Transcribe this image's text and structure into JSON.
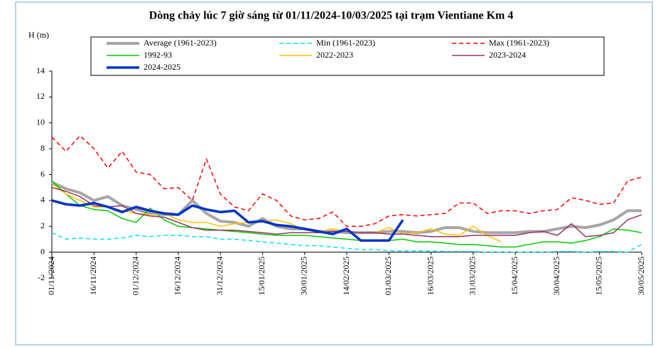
{
  "chart_data": {
    "type": "line",
    "title": "Dòng chảy lúc 7 giờ sáng từ 01/11/2024-10/03/2025 tại trạm Vientiane Km 4",
    "y_label": "H (m)",
    "x": [
      "01/11/2024",
      "06/11/2024",
      "11/11/2024",
      "16/11/2024",
      "21/11/2024",
      "26/11/2024",
      "01/12/2024",
      "06/12/2024",
      "11/12/2024",
      "16/12/2024",
      "21/12/2024",
      "26/12/2024",
      "31/12/2024",
      "05/01/2025",
      "10/01/2025",
      "15/01/2025",
      "20/01/2025",
      "25/01/2025",
      "30/01/2025",
      "04/02/2025",
      "09/02/2025",
      "14/02/2025",
      "19/02/2025",
      "24/02/2025",
      "01/03/2025",
      "06/03/2025",
      "11/03/2025",
      "16/03/2025",
      "21/03/2025",
      "26/03/2025",
      "31/03/2025",
      "05/04/2025",
      "10/04/2025",
      "15/04/2025",
      "20/04/2025",
      "25/04/2025",
      "30/04/2025",
      "05/05/2025",
      "10/05/2025",
      "15/05/2025",
      "20/05/2025",
      "25/05/2025",
      "30/05/2025"
    ],
    "xlim": [
      "01/11/2024",
      "30/05/2025"
    ],
    "xticks": [
      "01/11/2024",
      "16/11/2024",
      "01/12/2024",
      "16/12/2024",
      "31/12/2024",
      "15/01/2025",
      "30/01/2025",
      "14/02/2025",
      "01/03/2025",
      "16/03/2025",
      "31/03/2025",
      "15/04/2025",
      "30/04/2025",
      "15/05/2025",
      "30/05/2025"
    ],
    "ylim": [
      -2,
      14
    ],
    "yticks": [
      -2,
      0,
      2,
      4,
      6,
      8,
      10,
      12,
      14
    ],
    "series": [
      {
        "name": "Average (1961-2023)",
        "color": "#a6a6a6",
        "width": 4,
        "dash": false,
        "values": [
          5.4,
          4.9,
          4.6,
          4.0,
          4.3,
          3.6,
          3.3,
          3.0,
          2.9,
          2.9,
          4.0,
          3.0,
          2.4,
          2.3,
          2.0,
          2.6,
          2.0,
          1.8,
          1.8,
          1.6,
          1.6,
          1.5,
          1.5,
          1.5,
          1.6,
          1.6,
          1.5,
          1.6,
          1.9,
          1.9,
          1.6,
          1.5,
          1.5,
          1.5,
          1.6,
          1.6,
          1.8,
          2.0,
          1.9,
          2.1,
          2.5,
          3.2,
          3.2
        ]
      },
      {
        "name": "Min (1961-2023)",
        "color": "#00e5ee",
        "width": 1.5,
        "dash": true,
        "values": [
          1.5,
          1.0,
          1.1,
          1.0,
          1.0,
          1.1,
          1.3,
          1.2,
          1.3,
          1.3,
          1.2,
          1.2,
          1.0,
          1.0,
          0.9,
          0.8,
          0.7,
          0.6,
          0.5,
          0.5,
          0.4,
          0.3,
          0.2,
          0.2,
          0.1,
          0.1,
          0.1,
          0.1,
          0.05,
          0.05,
          0.05,
          0,
          0,
          0,
          0,
          0,
          0.05,
          0.05,
          0,
          0.05,
          0.05,
          0,
          0.6
        ]
      },
      {
        "name": "Max (1961-2023)",
        "color": "#ff0000",
        "width": 1.5,
        "dash": true,
        "values": [
          8.9,
          7.8,
          9.0,
          8.0,
          6.5,
          7.8,
          6.2,
          6.0,
          4.9,
          5.0,
          4.0,
          7.2,
          4.5,
          3.5,
          3.2,
          4.5,
          4.0,
          2.8,
          2.5,
          2.6,
          3.1,
          2.0,
          2.0,
          2.2,
          2.8,
          2.9,
          2.8,
          2.9,
          3.0,
          3.8,
          3.8,
          3.0,
          3.2,
          3.2,
          3.0,
          3.2,
          3.3,
          4.2,
          4.0,
          3.7,
          3.8,
          5.5,
          5.8
        ]
      },
      {
        "name": "1992-93",
        "color": "#00cc00",
        "width": 1.5,
        "dash": false,
        "values": [
          5.5,
          4.5,
          3.6,
          3.3,
          3.2,
          2.6,
          2.3,
          3.4,
          2.5,
          2.0,
          1.9,
          1.8,
          1.7,
          1.6,
          1.5,
          1.4,
          1.3,
          1.3,
          1.3,
          1.2,
          1.1,
          1.0,
          0.9,
          0.9,
          0.9,
          1.0,
          0.8,
          0.8,
          0.7,
          0.6,
          0.6,
          0.5,
          0.4,
          0.4,
          0.6,
          0.8,
          0.8,
          0.7,
          0.9,
          1.2,
          1.8,
          1.7,
          1.5
        ]
      },
      {
        "name": "2022-2023",
        "color": "#ffc000",
        "width": 1.5,
        "dash": false,
        "values": [
          5.3,
          4.5,
          4.0,
          3.5,
          3.5,
          3.2,
          3.0,
          2.9,
          3.0,
          2.5,
          2.3,
          2.3,
          2.0,
          2.2,
          2.3,
          2.4,
          2.5,
          2.2,
          1.7,
          1.6,
          1.8,
          1.6,
          1.5,
          1.5,
          1.9,
          1.4,
          1.5,
          1.8,
          1.4,
          1.3,
          2.0,
          1.3,
          0.8,
          null,
          null,
          null,
          null,
          null,
          null,
          null,
          null,
          null,
          null
        ]
      },
      {
        "name": "2023-2024",
        "color": "#993366",
        "width": 1.5,
        "dash": false,
        "values": [
          5.0,
          4.7,
          4.3,
          3.6,
          3.5,
          3.6,
          3.0,
          2.8,
          2.7,
          2.3,
          1.9,
          1.7,
          1.7,
          1.7,
          1.6,
          1.5,
          1.4,
          1.5,
          1.5,
          1.5,
          1.6,
          1.6,
          1.5,
          1.5,
          1.4,
          1.4,
          1.3,
          1.2,
          1.2,
          1.2,
          1.3,
          1.3,
          1.3,
          1.3,
          1.5,
          1.6,
          1.3,
          2.2,
          1.2,
          1.3,
          1.5,
          2.5,
          2.9
        ]
      },
      {
        "name": "2024-2025",
        "color": "#0033cc",
        "width": 3.5,
        "dash": false,
        "values": [
          4.0,
          3.7,
          3.6,
          3.8,
          3.5,
          3.1,
          3.5,
          3.2,
          3.0,
          2.9,
          3.6,
          3.3,
          3.1,
          3.2,
          2.3,
          2.4,
          2.1,
          2.0,
          1.8,
          1.6,
          1.4,
          1.8,
          0.9,
          0.9,
          0.9,
          2.5,
          null,
          null,
          null,
          null,
          null,
          null,
          null,
          null,
          null,
          null,
          null,
          null,
          null,
          null,
          null,
          null,
          null
        ]
      }
    ]
  }
}
